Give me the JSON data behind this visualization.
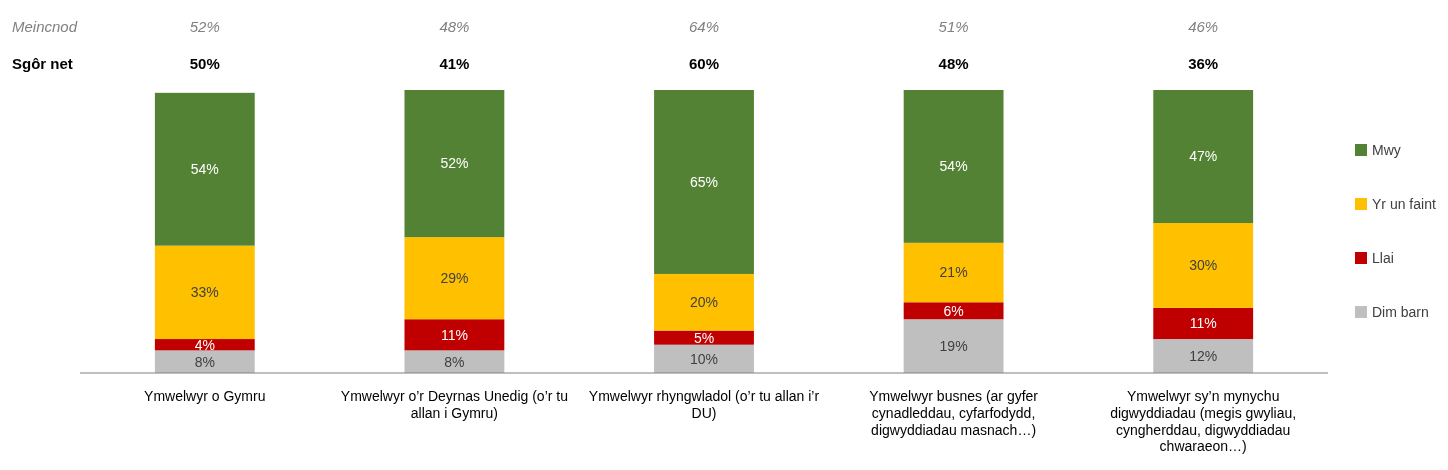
{
  "chart_data": {
    "type": "bar",
    "stacked": true,
    "legend": "right",
    "categories": [
      "Ymwelwyr o Gymru",
      "Ymwelwyr o’r Deyrnas Unedig (o’r tu allan i Gymru)",
      "Ymwelwyr rhyngwladol (o’r tu allan i’r DU)",
      "Ymwelwyr busnes (ar gyfer cynadleddau, cyfarfodydd, digwyddiadau masnach…)",
      "Ymwelwyr sy’n mynychu digwyddiadau (megis gwyliau, cyngherddau, digwyddiadau chwaraeon…)"
    ],
    "series": [
      {
        "name": "Dim barn",
        "color": "#bfbfbf",
        "values": [
          8,
          8,
          10,
          19,
          12
        ],
        "value_labels": [
          "8%",
          "8%",
          "10%",
          "19%",
          "12%"
        ]
      },
      {
        "name": "Llai",
        "color": "#c00000",
        "values": [
          4,
          11,
          5,
          6,
          11
        ],
        "value_labels": [
          "4%",
          "11%",
          "5%",
          "6%",
          "11%"
        ]
      },
      {
        "name": "Yr un faint",
        "color": "#ffc000",
        "values": [
          33,
          29,
          20,
          21,
          30
        ],
        "value_labels": [
          "33%",
          "29%",
          "20%",
          "21%",
          "30%"
        ]
      },
      {
        "name": "Mwy",
        "color": "#548235",
        "values": [
          54,
          52,
          65,
          54,
          47
        ],
        "value_labels": [
          "54%",
          "52%",
          "65%",
          "54%",
          "47%"
        ]
      }
    ],
    "annotations": [
      "Meincnod",
      "52%",
      "48%",
      "64%",
      "51%",
      "46%",
      "Sgôr net",
      "50%",
      "41%",
      "60%",
      "48%",
      "36%"
    ]
  }
}
